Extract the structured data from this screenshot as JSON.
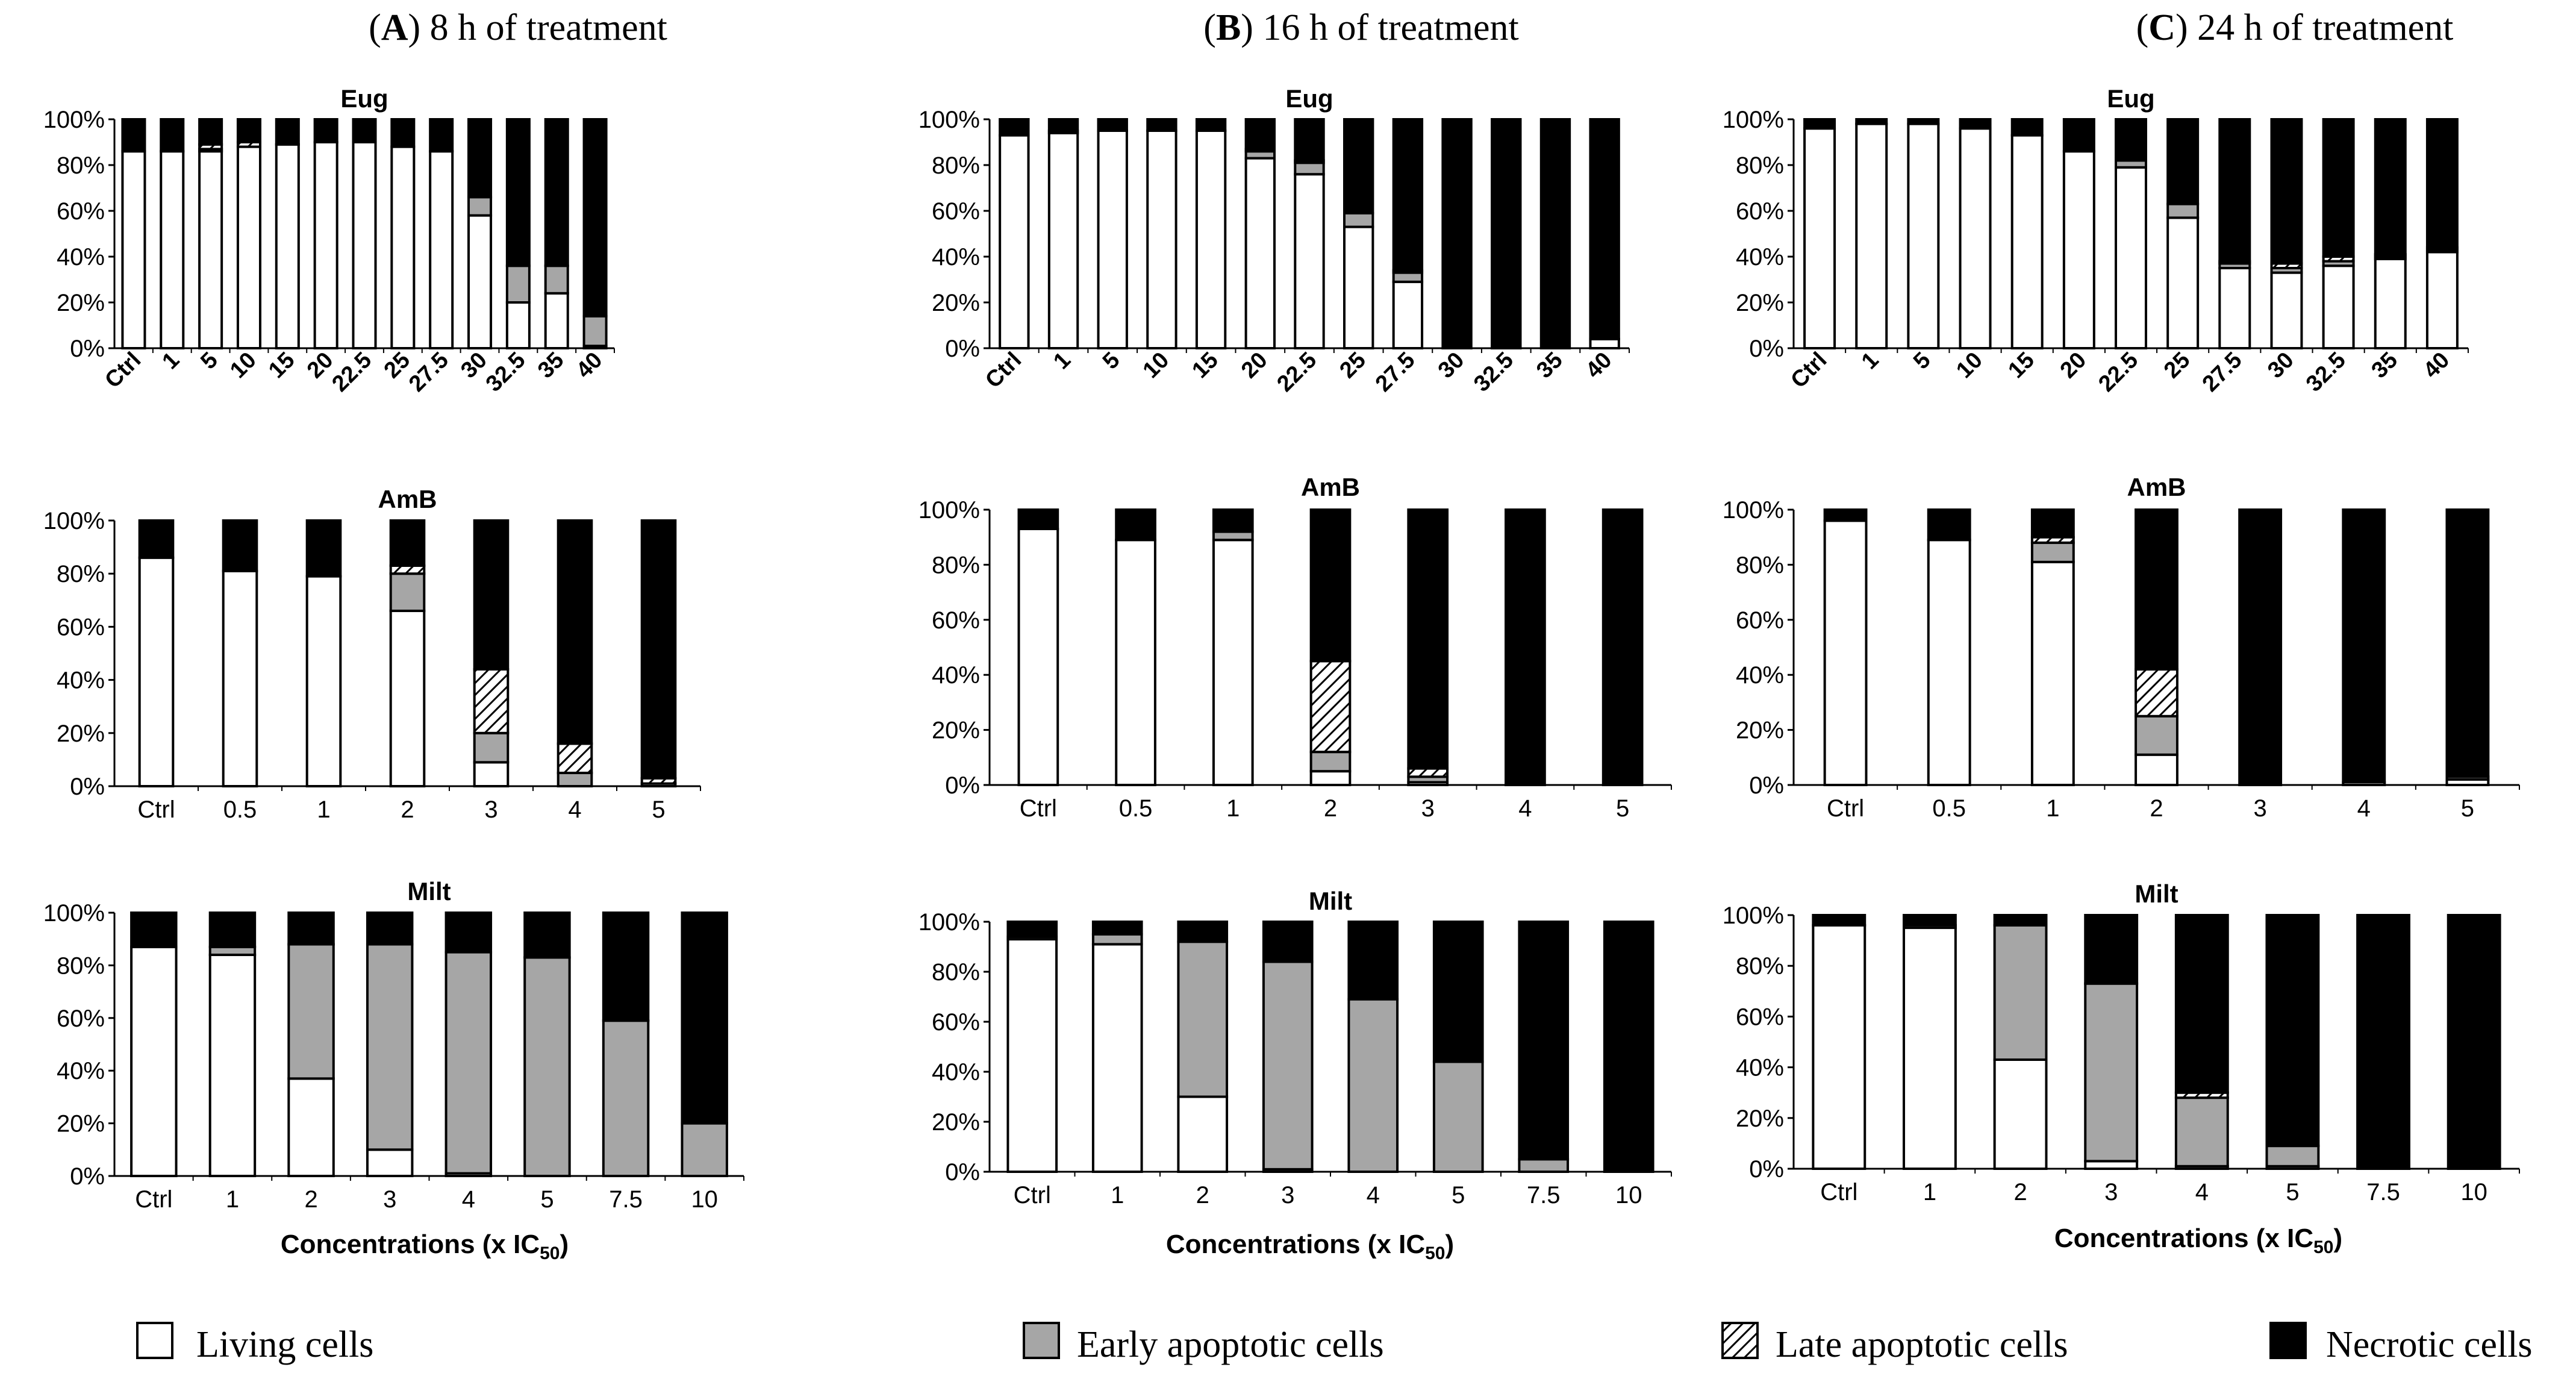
{
  "colors": {
    "living": "#ffffff",
    "early": "#a6a6a6",
    "late": "hatch",
    "necrotic": "#000000"
  },
  "panels": [
    {
      "letter": "A",
      "suffix": "8 h of treatment"
    },
    {
      "letter": "B",
      "suffix": "16 h of treatment"
    },
    {
      "letter": "C",
      "suffix": "24 h of treatment"
    }
  ],
  "y_ticks": [
    "0%",
    "20%",
    "40%",
    "60%",
    "80%",
    "100%"
  ],
  "x_axis_label": {
    "prefix": "Concentrations (x IC",
    "sub": "50",
    "suffix": ")"
  },
  "legend": [
    {
      "key": "living",
      "label": "Living cells"
    },
    {
      "key": "early",
      "label": "Early apoptotic cells"
    },
    {
      "key": "late",
      "label": "Late apoptotic cells"
    },
    {
      "key": "necrotic",
      "label": "Necrotic cells"
    }
  ],
  "chart_data": [
    {
      "type": "bar",
      "stacked": true,
      "panel": "A",
      "title": "Eug",
      "ylim": [
        0,
        100
      ],
      "categories": [
        "Ctrl",
        "1",
        "5",
        "10",
        "15",
        "20",
        "22.5",
        "25",
        "27.5",
        "30",
        "32.5",
        "35",
        "40"
      ],
      "series": [
        {
          "name": "Living cells",
          "values": [
            86,
            86,
            86,
            88,
            89,
            90,
            90,
            88,
            86,
            58,
            20,
            24,
            1
          ]
        },
        {
          "name": "Early apoptotic cells",
          "values": [
            0,
            0,
            1,
            0,
            0,
            0,
            0,
            0,
            0,
            8,
            16,
            12,
            13
          ]
        },
        {
          "name": "Late apoptotic cells",
          "values": [
            0,
            0,
            2,
            2,
            0,
            0,
            0,
            0,
            0,
            0,
            0,
            0,
            0
          ]
        },
        {
          "name": "Necrotic cells",
          "values": [
            14,
            14,
            11,
            10,
            11,
            10,
            10,
            12,
            14,
            34,
            64,
            64,
            86
          ]
        }
      ]
    },
    {
      "type": "bar",
      "stacked": true,
      "panel": "B",
      "title": "Eug",
      "ylim": [
        0,
        100
      ],
      "categories": [
        "Ctrl",
        "1",
        "5",
        "10",
        "15",
        "20",
        "22.5",
        "25",
        "27.5",
        "30",
        "32.5",
        "35",
        "40"
      ],
      "series": [
        {
          "name": "Living cells",
          "values": [
            93,
            94,
            95,
            95,
            95,
            83,
            76,
            53,
            29,
            0,
            0,
            0,
            4
          ]
        },
        {
          "name": "Early apoptotic cells",
          "values": [
            0,
            1,
            0,
            0,
            0,
            3,
            5,
            6,
            4,
            0,
            0,
            0,
            0
          ]
        },
        {
          "name": "Late apoptotic cells",
          "values": [
            0,
            0,
            0,
            0,
            0,
            1,
            1,
            0,
            1,
            0,
            0,
            0,
            0
          ]
        },
        {
          "name": "Necrotic cells",
          "values": [
            7,
            5,
            5,
            5,
            5,
            13,
            18,
            41,
            66,
            100,
            100,
            100,
            96
          ]
        }
      ]
    },
    {
      "type": "bar",
      "stacked": true,
      "panel": "C",
      "title": "Eug",
      "ylim": [
        0,
        100
      ],
      "categories": [
        "Ctrl",
        "1",
        "5",
        "10",
        "15",
        "20",
        "22.5",
        "25",
        "27.5",
        "30",
        "32.5",
        "35",
        "40"
      ],
      "series": [
        {
          "name": "Living cells",
          "values": [
            96,
            98,
            98,
            96,
            93,
            86,
            79,
            57,
            35,
            33,
            36,
            39,
            42
          ]
        },
        {
          "name": "Early apoptotic cells",
          "values": [
            0,
            0,
            0,
            0,
            0,
            0,
            3,
            6,
            2,
            2,
            2,
            1,
            1
          ]
        },
        {
          "name": "Late apoptotic cells",
          "values": [
            0,
            0,
            0,
            0,
            0,
            0,
            1,
            0,
            1,
            2,
            2,
            1,
            1
          ]
        },
        {
          "name": "Necrotic cells",
          "values": [
            4,
            2,
            2,
            4,
            7,
            14,
            17,
            37,
            62,
            63,
            60,
            59,
            56
          ]
        }
      ]
    },
    {
      "type": "bar",
      "stacked": true,
      "panel": "A",
      "title": "AmB",
      "ylim": [
        0,
        100
      ],
      "categories": [
        "Ctrl",
        "0.5",
        "1",
        "2",
        "3",
        "4",
        "5"
      ],
      "series": [
        {
          "name": "Living cells",
          "values": [
            86,
            81,
            79,
            66,
            9,
            0,
            0
          ]
        },
        {
          "name": "Early apoptotic cells",
          "values": [
            0,
            0,
            0,
            14,
            11,
            5,
            1
          ]
        },
        {
          "name": "Late apoptotic cells",
          "values": [
            0,
            0,
            0,
            3,
            24,
            11,
            2
          ]
        },
        {
          "name": "Necrotic cells",
          "values": [
            14,
            19,
            21,
            17,
            56,
            84,
            97
          ]
        }
      ]
    },
    {
      "type": "bar",
      "stacked": true,
      "panel": "B",
      "title": "AmB",
      "ylim": [
        0,
        100
      ],
      "categories": [
        "Ctrl",
        "0.5",
        "1",
        "2",
        "3",
        "4",
        "5"
      ],
      "series": [
        {
          "name": "Living cells",
          "values": [
            93,
            89,
            89,
            5,
            1,
            0,
            0
          ]
        },
        {
          "name": "Early apoptotic cells",
          "values": [
            0,
            0,
            3,
            7,
            2,
            0,
            0
          ]
        },
        {
          "name": "Late apoptotic cells",
          "values": [
            0,
            0,
            0,
            33,
            3,
            0,
            0
          ]
        },
        {
          "name": "Necrotic cells",
          "values": [
            7,
            11,
            8,
            55,
            94,
            100,
            100
          ]
        }
      ]
    },
    {
      "type": "bar",
      "stacked": true,
      "panel": "C",
      "title": "AmB",
      "ylim": [
        0,
        100
      ],
      "categories": [
        "Ctrl",
        "0.5",
        "1",
        "2",
        "3",
        "4",
        "5"
      ],
      "series": [
        {
          "name": "Living cells",
          "values": [
            96,
            89,
            81,
            11,
            0,
            1,
            2
          ]
        },
        {
          "name": "Early apoptotic cells",
          "values": [
            0,
            0,
            7,
            14,
            0,
            0,
            1
          ]
        },
        {
          "name": "Late apoptotic cells",
          "values": [
            0,
            0,
            2,
            17,
            0,
            0,
            0
          ]
        },
        {
          "name": "Necrotic cells",
          "values": [
            4,
            11,
            10,
            58,
            100,
            99,
            97
          ]
        }
      ]
    },
    {
      "type": "bar",
      "stacked": true,
      "panel": "A",
      "title": "Milt",
      "ylim": [
        0,
        100
      ],
      "categories": [
        "Ctrl",
        "1",
        "2",
        "3",
        "4",
        "5",
        "7.5",
        "10"
      ],
      "series": [
        {
          "name": "Living cells",
          "values": [
            87,
            84,
            37,
            10,
            1,
            0,
            0,
            0
          ]
        },
        {
          "name": "Early apoptotic cells",
          "values": [
            0,
            3,
            51,
            78,
            84,
            83,
            59,
            20
          ]
        },
        {
          "name": "Late apoptotic cells",
          "values": [
            0,
            0,
            0,
            0,
            0,
            0,
            0,
            0
          ]
        },
        {
          "name": "Necrotic cells",
          "values": [
            13,
            13,
            12,
            12,
            15,
            17,
            41,
            80
          ]
        }
      ]
    },
    {
      "type": "bar",
      "stacked": true,
      "panel": "B",
      "title": "Milt",
      "ylim": [
        0,
        100
      ],
      "categories": [
        "Ctrl",
        "1",
        "2",
        "3",
        "4",
        "5",
        "7.5",
        "10"
      ],
      "series": [
        {
          "name": "Living cells",
          "values": [
            93,
            91,
            30,
            1,
            0,
            0,
            0,
            0
          ]
        },
        {
          "name": "Early apoptotic cells",
          "values": [
            1,
            4,
            62,
            83,
            69,
            44,
            5,
            0
          ]
        },
        {
          "name": "Late apoptotic cells",
          "values": [
            0,
            0,
            0,
            0,
            0,
            0,
            0,
            0
          ]
        },
        {
          "name": "Necrotic cells",
          "values": [
            6,
            5,
            8,
            16,
            31,
            56,
            95,
            100
          ]
        }
      ]
    },
    {
      "type": "bar",
      "stacked": true,
      "panel": "C",
      "title": "Milt",
      "ylim": [
        0,
        100
      ],
      "categories": [
        "Ctrl",
        "1",
        "2",
        "3",
        "4",
        "5",
        "7.5",
        "10"
      ],
      "series": [
        {
          "name": "Living cells",
          "values": [
            96,
            95,
            43,
            3,
            1,
            1,
            0,
            0
          ]
        },
        {
          "name": "Early apoptotic cells",
          "values": [
            0,
            1,
            53,
            70,
            27,
            8,
            0,
            0
          ]
        },
        {
          "name": "Late apoptotic cells",
          "values": [
            0,
            0,
            0,
            0,
            2,
            0,
            0,
            0
          ]
        },
        {
          "name": "Necrotic cells",
          "values": [
            4,
            4,
            4,
            27,
            70,
            91,
            100,
            100
          ]
        }
      ]
    }
  ]
}
